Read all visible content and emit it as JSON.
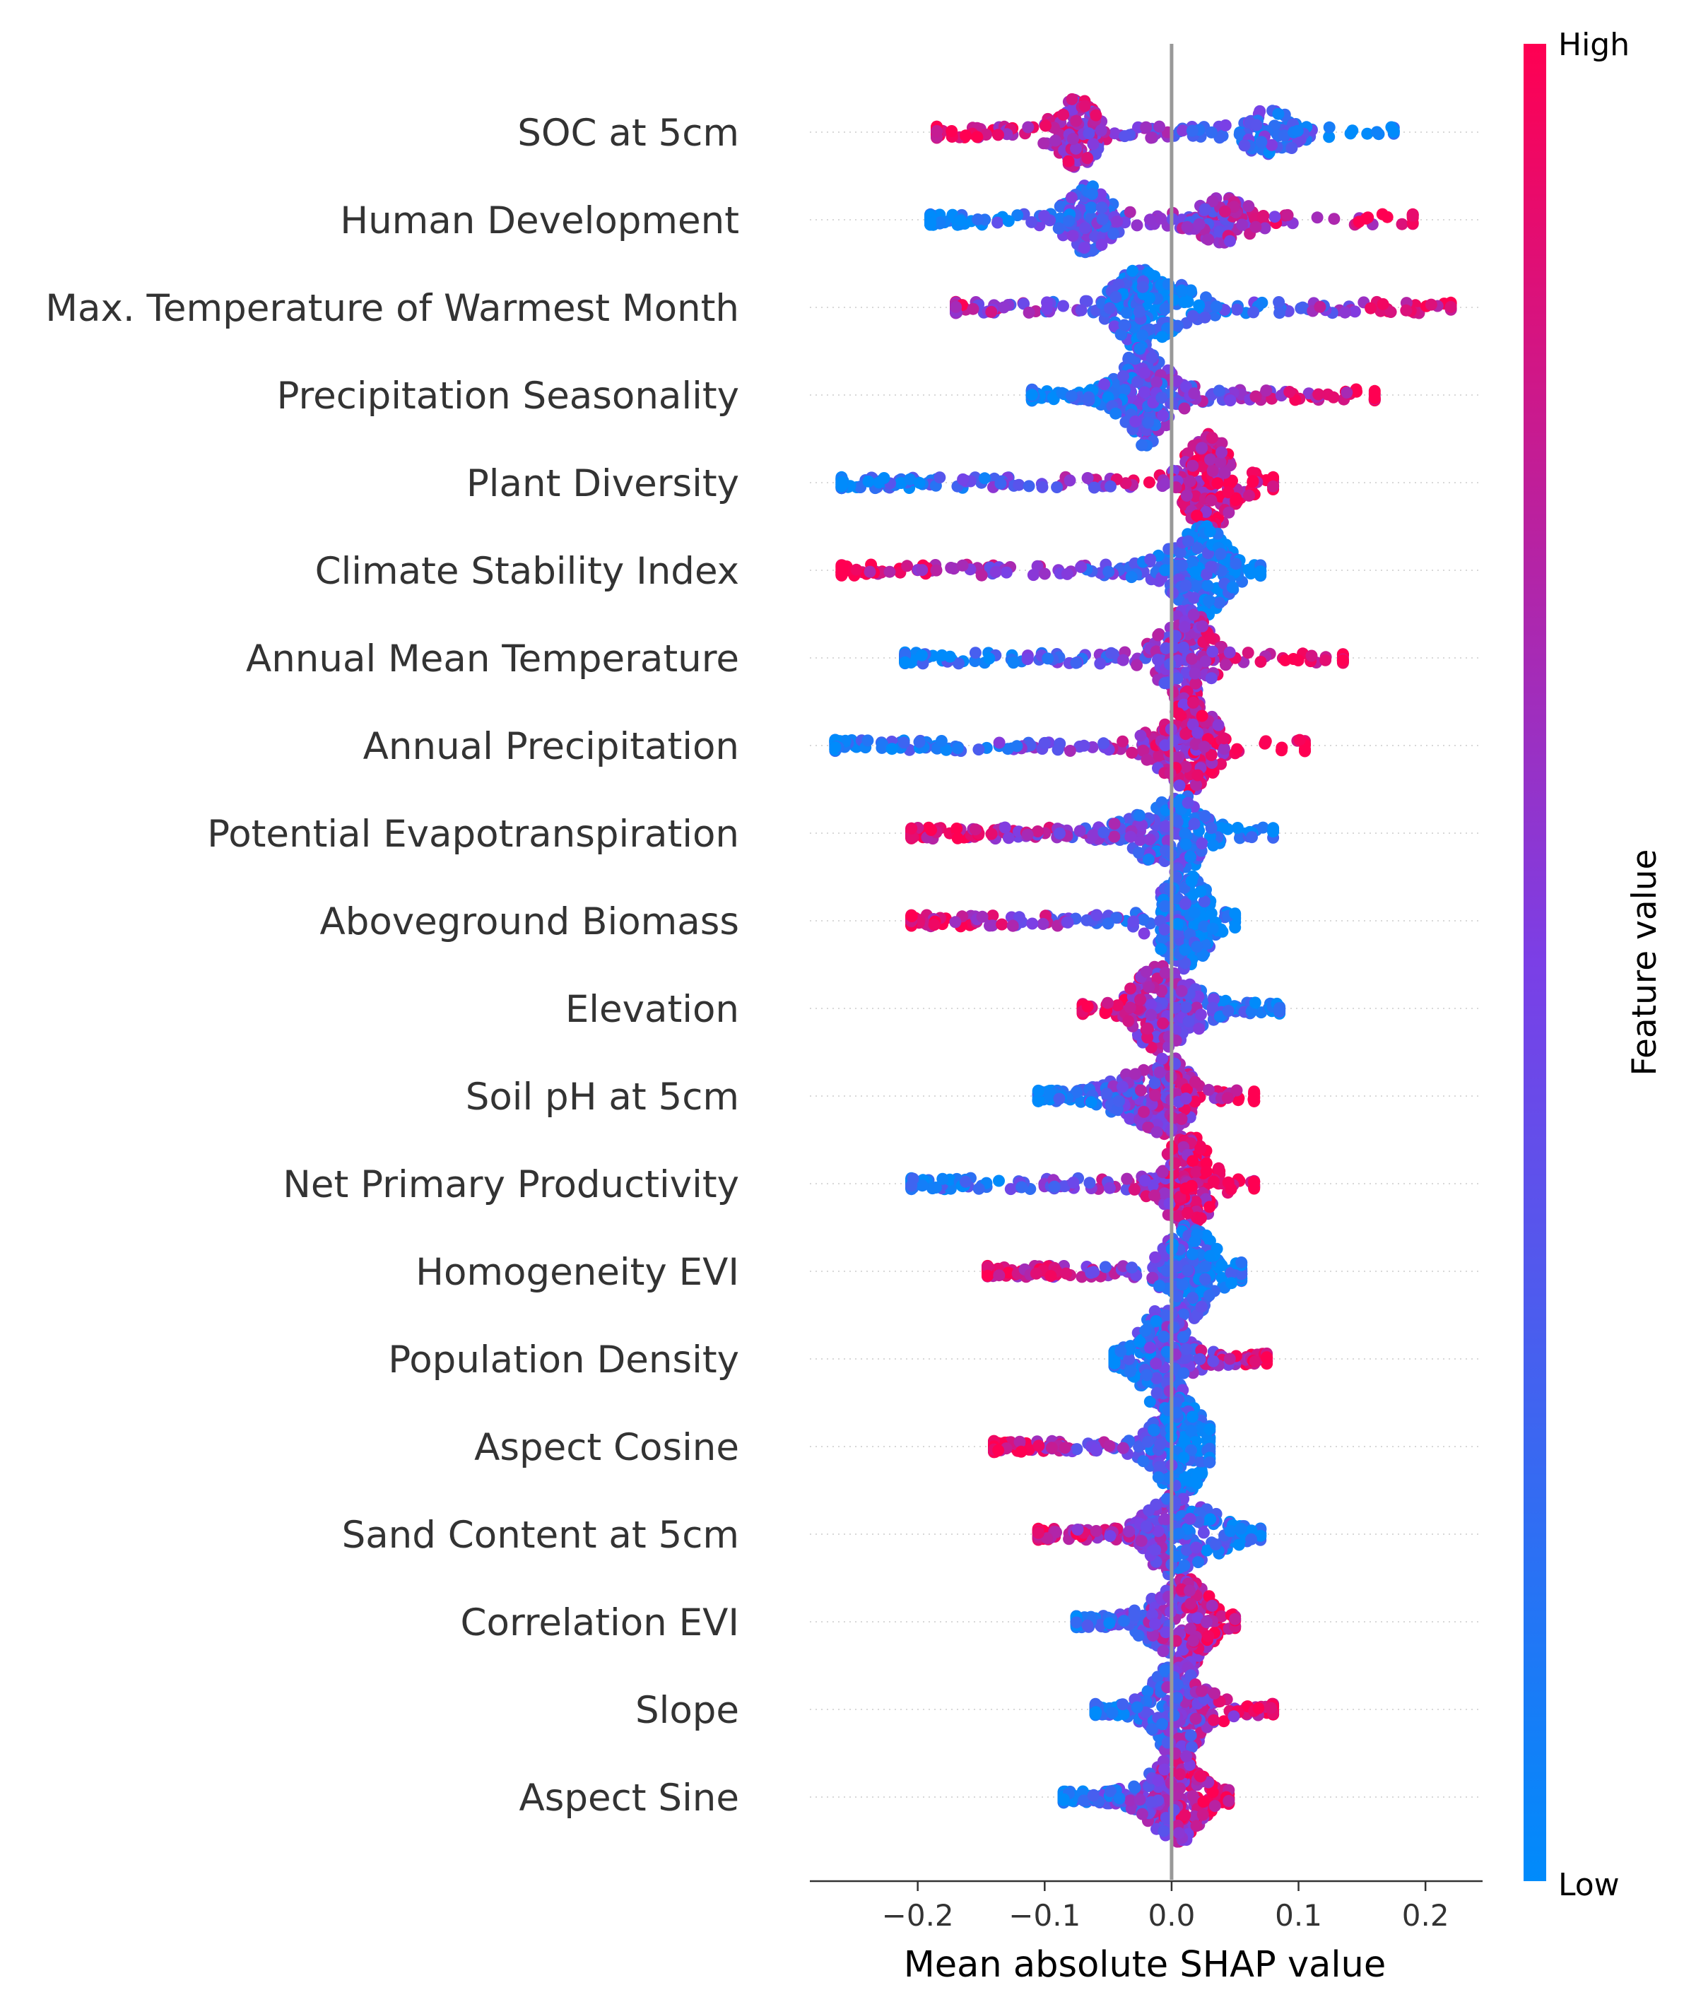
{
  "chart_data": {
    "type": "scatter",
    "subtype": "shap-beeswarm",
    "xlabel": "Mean absolute SHAP value",
    "xlim": [
      -0.285,
      0.245
    ],
    "xticks": [
      -0.2,
      -0.1,
      0.0,
      0.1,
      0.2
    ],
    "xtick_labels": [
      "−0.2",
      "−0.1",
      "0.0",
      "0.1",
      "0.2"
    ],
    "zero_line": true,
    "colorbar": {
      "title": "Feature value",
      "high_label": "High",
      "low_label": "Low",
      "high_color": "#ff0052",
      "mid_color": "#7b3fe6",
      "low_color": "#008bfb"
    },
    "features": [
      {
        "name": "SOC at 5cm",
        "min": -0.185,
        "max": 0.175,
        "neg": "high",
        "peak": -0.075,
        "peak2": 0.077
      },
      {
        "name": "Human Development",
        "min": -0.19,
        "max": 0.19,
        "neg": "low",
        "peak": -0.065,
        "peak2": 0.04
      },
      {
        "name": "Max. Temperature of Warmest Month",
        "min": -0.17,
        "max": 0.22,
        "neg": "mixed",
        "peak": -0.03,
        "peak2": 0.0
      },
      {
        "name": "Precipitation Seasonality",
        "min": -0.11,
        "max": 0.16,
        "neg": "low",
        "peak": -0.025,
        "peak2": -0.015
      },
      {
        "name": "Plant Diversity",
        "min": -0.26,
        "max": 0.08,
        "neg": "low",
        "peak": 0.025,
        "peak2": 0.04
      },
      {
        "name": "Climate Stability Index",
        "min": -0.26,
        "max": 0.07,
        "neg": "high",
        "peak": 0.03,
        "peak2": 0.01
      },
      {
        "name": "Annual Mean Temperature",
        "min": -0.21,
        "max": 0.135,
        "neg": "low",
        "peak": 0.015,
        "peak2": 0.005
      },
      {
        "name": "Annual Precipitation",
        "min": -0.265,
        "max": 0.105,
        "neg": "low",
        "peak": 0.02,
        "peak2": 0.0
      },
      {
        "name": "Potential Evapotranspiration",
        "min": -0.205,
        "max": 0.08,
        "neg": "high",
        "peak": 0.01,
        "peak2": -0.02
      },
      {
        "name": "Aboveground Biomass",
        "min": -0.205,
        "max": 0.05,
        "neg": "high",
        "peak": 0.015,
        "peak2": 0.0
      },
      {
        "name": "Elevation",
        "min": -0.07,
        "max": 0.085,
        "neg": "high",
        "peak": -0.015,
        "peak2": 0.01
      },
      {
        "name": "Soil pH at 5cm",
        "min": -0.105,
        "max": 0.065,
        "neg": "low",
        "peak": 0.0,
        "peak2": -0.03
      },
      {
        "name": "Net Primary Productivity",
        "min": -0.205,
        "max": 0.065,
        "neg": "low",
        "peak": 0.015,
        "peak2": 0.005
      },
      {
        "name": "Homogeneity EVI",
        "min": -0.145,
        "max": 0.055,
        "neg": "high",
        "peak": 0.01,
        "peak2": 0.025
      },
      {
        "name": "Population Density",
        "min": -0.045,
        "max": 0.075,
        "neg": "low",
        "peak": -0.01,
        "peak2": 0.0
      },
      {
        "name": "Aspect Cosine",
        "min": -0.14,
        "max": 0.03,
        "neg": "high",
        "peak": 0.01,
        "peak2": 0.0
      },
      {
        "name": "Sand Content at 5cm",
        "min": -0.105,
        "max": 0.07,
        "neg": "high",
        "peak": -0.005,
        "peak2": 0.025
      },
      {
        "name": "Correlation EVI",
        "min": -0.075,
        "max": 0.05,
        "neg": "low",
        "peak": 0.015,
        "peak2": -0.005
      },
      {
        "name": "Slope",
        "min": -0.06,
        "max": 0.08,
        "neg": "low",
        "peak": 0.0,
        "peak2": 0.015
      },
      {
        "name": "Aspect Sine",
        "min": -0.085,
        "max": 0.045,
        "neg": "low",
        "peak": 0.01,
        "peak2": -0.01
      }
    ]
  }
}
